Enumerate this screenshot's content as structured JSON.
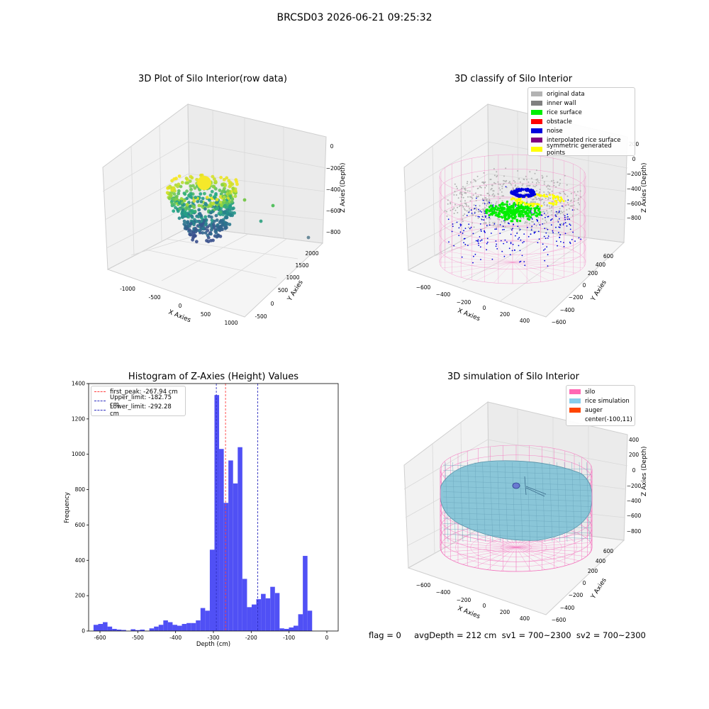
{
  "figure": {
    "title": "BRCSD03 2026-06-21 09:25:32",
    "footer": "flag = 0     avgDepth = 212 cm  sv1 = 700~2300  sv2 = 700~2300"
  },
  "colors": {
    "hist_bar": "#5050f5",
    "first_peak": "#ff4040",
    "upper_limit": "#3030c0",
    "lower_limit": "#3030c0",
    "grid_pane": "#f2f2f2",
    "wire": "#f47ac0"
  },
  "panels": {
    "raw": {
      "title": "3D Plot of Silo Interior(row data)",
      "xlabel": "X Axies",
      "ylabel": "Y Axies",
      "zlabel": "Z Axies (Depth)",
      "xticks": [
        "-1000",
        "-500",
        "0",
        "500",
        "1000"
      ],
      "yticks": [
        "-500",
        "0",
        "500",
        "1000",
        "1500",
        "2000"
      ],
      "zticks": [
        "0",
        "−200",
        "−400",
        "−600",
        "−800"
      ]
    },
    "classify": {
      "title": "3D classify of Silo Interior",
      "xlabel": "X Axies",
      "ylabel": "Y Axies",
      "zlabel": "Z Axies (Depth)",
      "xticks": [
        "−600",
        "−400",
        "−200",
        "0",
        "200",
        "400"
      ],
      "yticks": [
        "−600",
        "−400",
        "−200",
        "0",
        "200",
        "400",
        "600"
      ],
      "zticks": [
        "200",
        "0",
        "−200",
        "−400",
        "−600",
        "−800"
      ],
      "legend": [
        {
          "label": "original data",
          "color": "#b3b3b3"
        },
        {
          "label": "inner wall",
          "color": "#808080"
        },
        {
          "label": "rice surface",
          "color": "#00ee00"
        },
        {
          "label": "obstacle",
          "color": "#ff0000"
        },
        {
          "label": "noise",
          "color": "#0000dd"
        },
        {
          "label": "interpolated rice surface",
          "color": "#800080"
        },
        {
          "label": "symmetric generated points",
          "color": "#ffff00"
        }
      ]
    },
    "simulation": {
      "title": "3D simulation of Silo Interior",
      "xlabel": "X Axies",
      "ylabel": "Y Axies",
      "zlabel": "Z Axies (Depth)",
      "xticks": [
        "−600",
        "−400",
        "−200",
        "0",
        "200",
        "400"
      ],
      "yticks": [
        "−600",
        "−400",
        "−200",
        "0",
        "200",
        "400",
        "600"
      ],
      "zticks": [
        "400",
        "200",
        "0",
        "−200",
        "−400",
        "−600",
        "−800"
      ],
      "legend": [
        {
          "label": "silo",
          "color": "#ff69b4"
        },
        {
          "label": "rice simulation",
          "color": "#87ceeb"
        },
        {
          "label": "auger",
          "color": "#ff4500"
        },
        {
          "label": "center(-100,11)",
          "color": ""
        }
      ]
    }
  },
  "chart_data": {
    "type": "bar",
    "title": "Histogram of Z-Axies (Height) Values",
    "xlabel": "Depth (cm)",
    "ylabel": "Frequency",
    "xlim": [
      -630,
      30
    ],
    "ylim": [
      0,
      1400
    ],
    "xticks": [
      -600,
      -500,
      -400,
      -300,
      -200,
      -100,
      0
    ],
    "yticks": [
      0,
      200,
      400,
      600,
      800,
      1000,
      1200,
      1400
    ],
    "bin_start": -617,
    "bin_width": 12.3,
    "values": [
      35,
      40,
      50,
      25,
      12,
      8,
      6,
      0,
      10,
      5,
      8,
      0,
      15,
      25,
      35,
      60,
      50,
      35,
      30,
      40,
      45,
      45,
      60,
      130,
      115,
      460,
      1335,
      1030,
      725,
      965,
      835,
      1040,
      295,
      135,
      150,
      180,
      210,
      185,
      250,
      215,
      15,
      12,
      20,
      30,
      95,
      425,
      115,
      0
    ],
    "legend_placement": "top-left",
    "lines": [
      {
        "name": "first_peak: -267.94 cm",
        "x": -267.94,
        "color": "#ff4040"
      },
      {
        "name": "Upper_limit: -182.75 cm",
        "x": -182.75,
        "color": "#3030c0"
      },
      {
        "name": "Lower_limit: -292.28 cm",
        "x": -292.28,
        "color": "#3030c0"
      }
    ]
  }
}
